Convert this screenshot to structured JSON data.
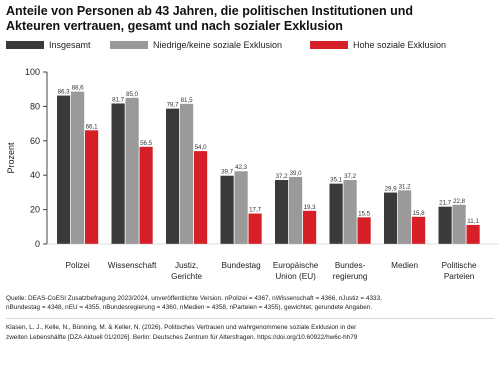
{
  "colors": {
    "series0": "#3a3a3a",
    "series1": "#9a9a9a",
    "series2": "#d61f26"
  },
  "title": {
    "line1": "Anteile von Personen ab 43 Jahren, die politischen Institutionen und",
    "line2": "Akteuren vertrauen, gesamt und nach sozialer Exklusion"
  },
  "chart_data": {
    "type": "bar",
    "title": "Anteile von Personen ab 43 Jahren, die politischen Institutionen und Akteuren vertrauen, gesamt und nach sozialer Exklusion",
    "ylabel": "Prozent",
    "ylim": [
      0,
      100
    ],
    "yticks": [
      "0",
      "20",
      "40",
      "60",
      "80",
      "100"
    ],
    "legend_position": "top",
    "grid": false,
    "categories": [
      [
        "Polizei"
      ],
      [
        "Wissenschaft"
      ],
      [
        "Justiz,",
        "Gerichte"
      ],
      [
        "Bundestag"
      ],
      [
        "Europäische",
        "Union (EU)"
      ],
      [
        "Bundes-",
        "regierung"
      ],
      [
        "Medien"
      ],
      [
        "Politische",
        "Parteien"
      ]
    ],
    "series": [
      {
        "name": "Insgesamt",
        "values": [
          86.3,
          81.7,
          78.7,
          39.7,
          37.2,
          35.1,
          29.9,
          21.7
        ],
        "labels": [
          "86,3",
          "81,7",
          "78,7",
          "39,7",
          "37,2",
          "35,1",
          "29,9",
          "21,7"
        ]
      },
      {
        "name": "Niedrige/keine soziale Exklusion",
        "values": [
          88.6,
          85.0,
          81.5,
          42.3,
          39.0,
          37.2,
          31.2,
          22.8
        ],
        "labels": [
          "88,6",
          "85,0",
          "81,5",
          "42,3",
          "39,0",
          "37,2",
          "31,2",
          "22,8"
        ]
      },
      {
        "name": "Hohe soziale Exklusion",
        "values": [
          66.1,
          56.5,
          54.0,
          17.7,
          19.3,
          15.5,
          15.8,
          11.1
        ],
        "labels": [
          "66,1",
          "56,5",
          "54,0",
          "17,7",
          "19,3",
          "15,5",
          "15,8",
          "11,1"
        ]
      }
    ]
  },
  "source": {
    "line1": "Quelle: DEAS-CoESI Zusatzbefragung 2023/2024, unveröffentlichte Version. nPolizei = 4367, nWissenschaft = 4366, nJustiz = 4333,",
    "line2": "nBundestag = 4348, nEU = 4355, nBundesregierung = 4360, nMedien = 4358, nParteien = 4355), gewichtet, gerundete Angaben."
  },
  "citation": {
    "line1": "Klasen, L. J., Kelle, N., Bünning, M. & Keller, N. (2026). Politisches Vertrauen und wahrgenommene soziale Exklusion in der",
    "line2": "zweiten Lebenshälfte [DZA Aktuell 01/2026]. Berlin: Deutsches Zentrum für Altersfragen. https://doi.org/10.60922/hw6c-hh79"
  }
}
